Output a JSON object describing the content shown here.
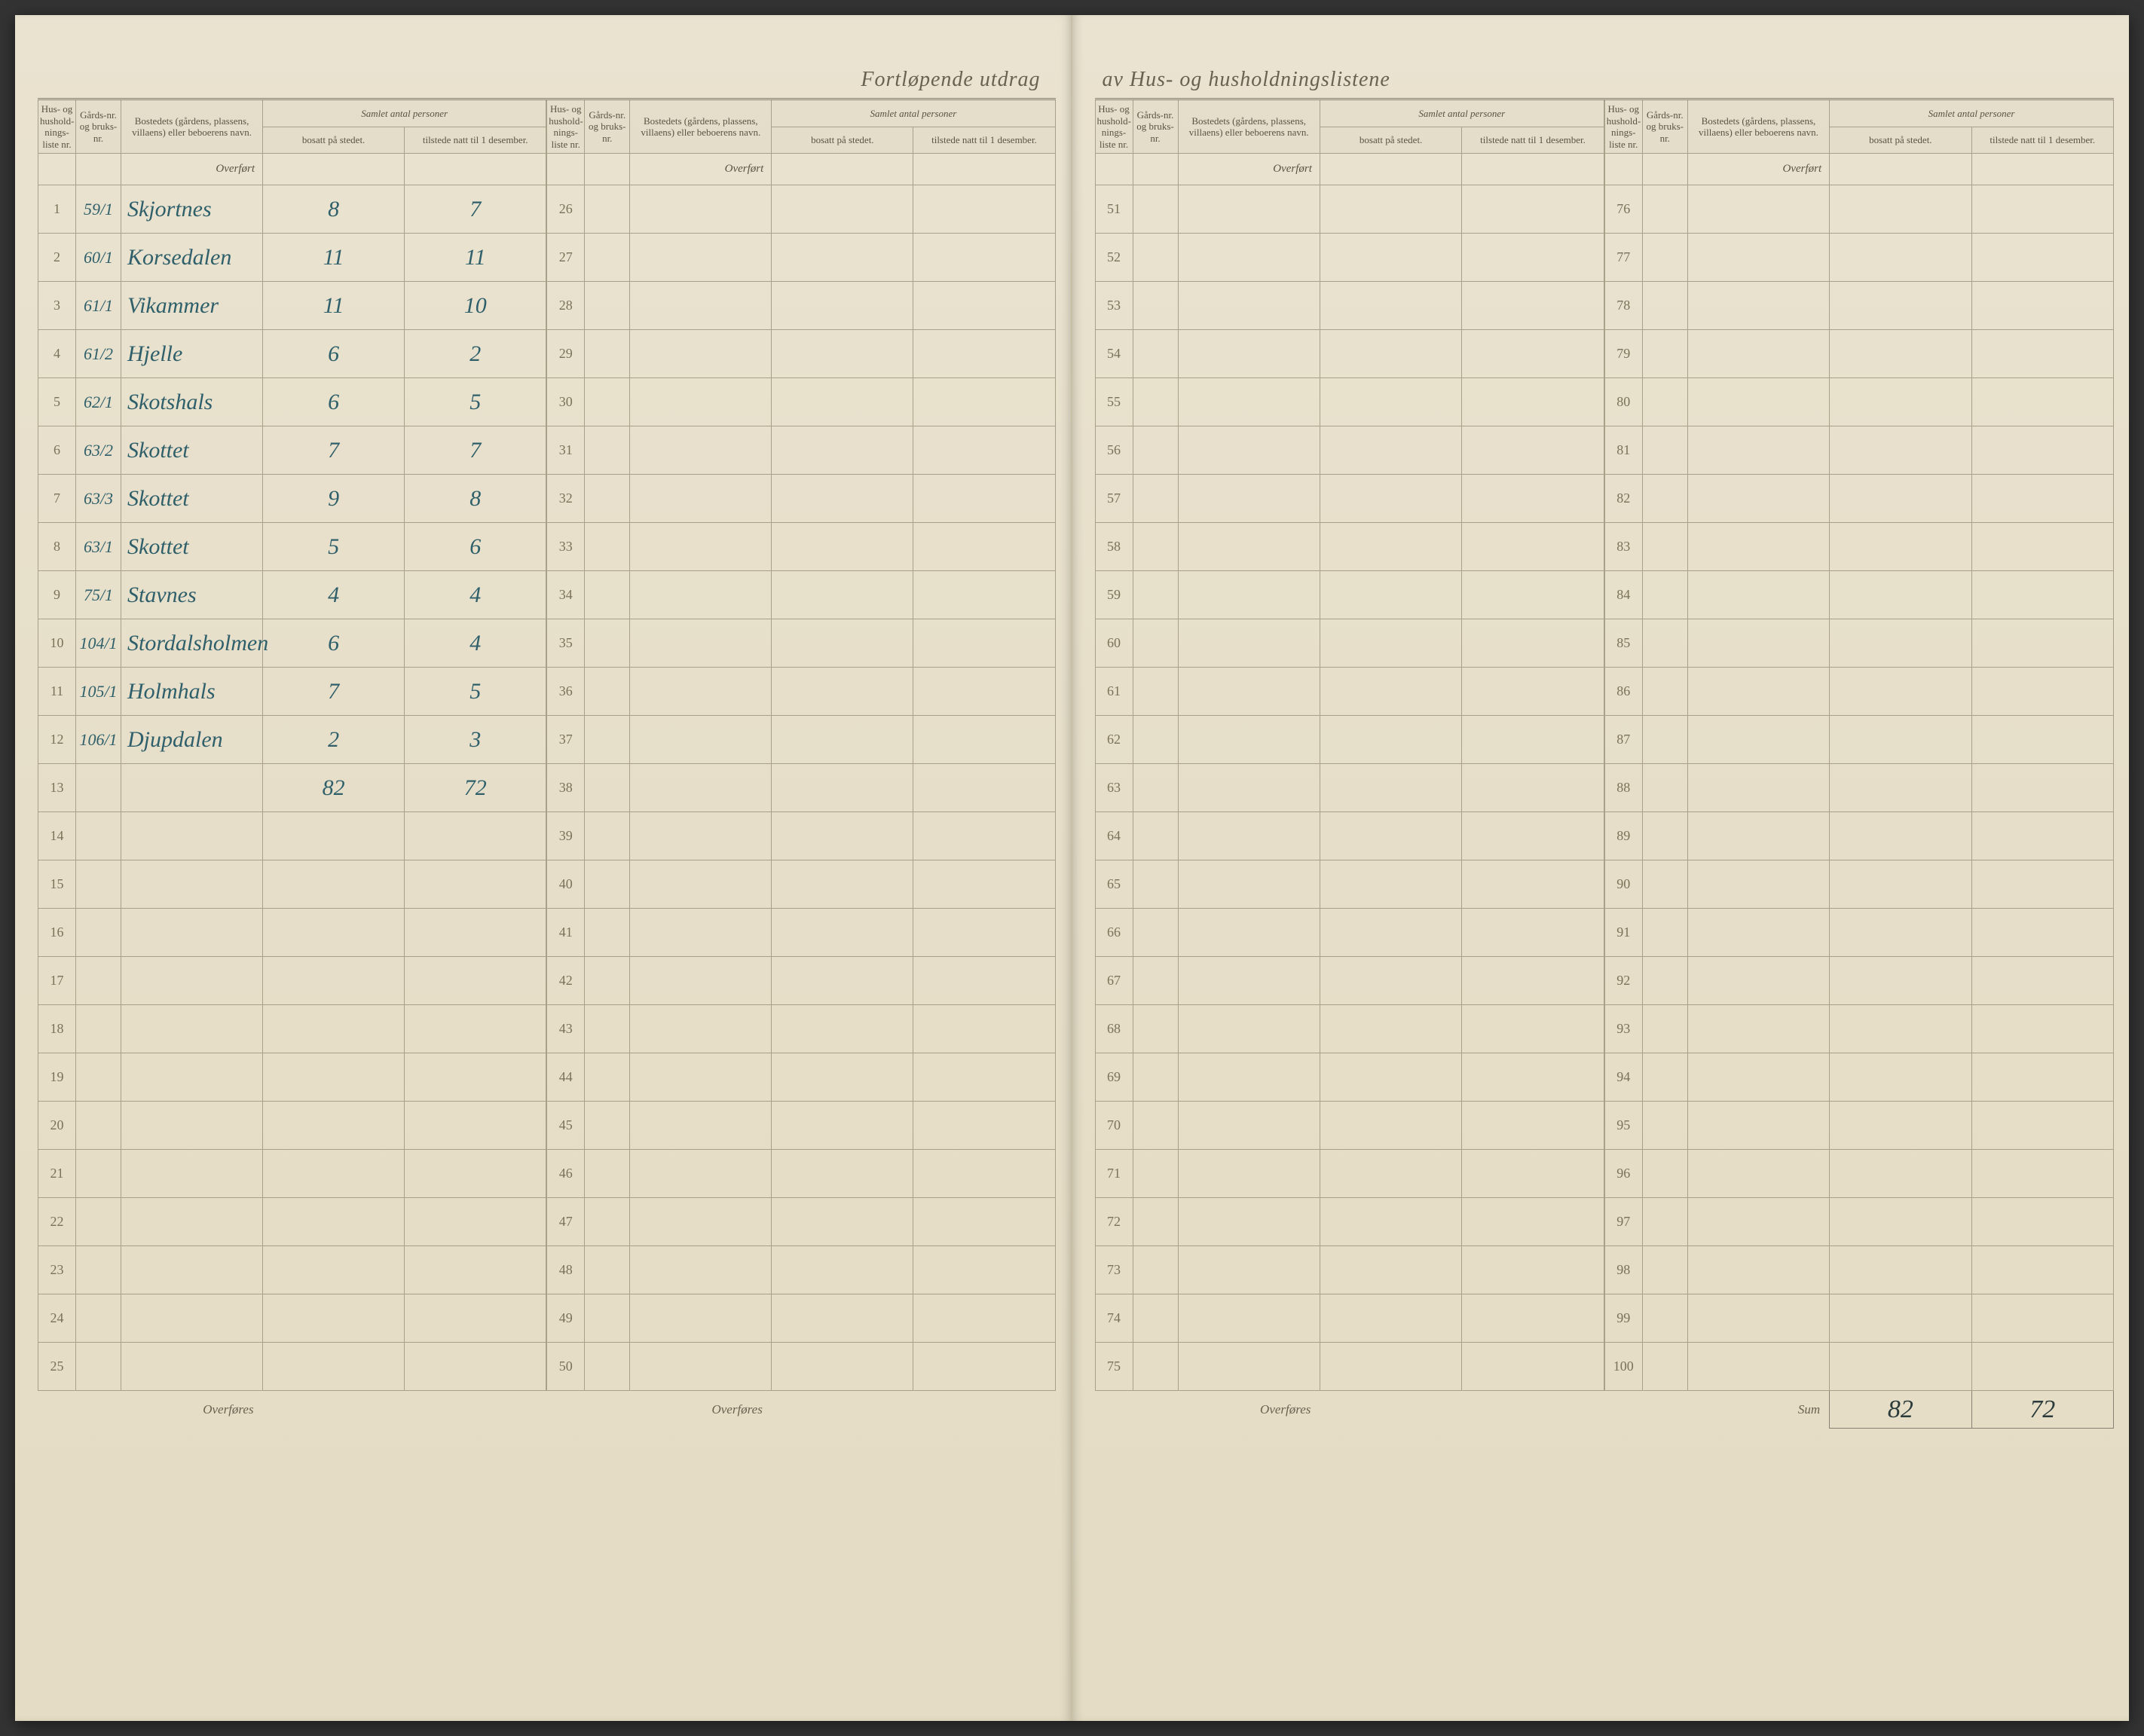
{
  "title_left": "Fortløpende utdrag",
  "title_right": "av Hus- og husholdningslistene",
  "headers": {
    "liste_nr": "Hus- og hushold-nings-liste nr.",
    "gards_nr": "Gårds-nr. og bruks-nr.",
    "bosted": "Bostedets (gårdens, plassens, villaens) eller beboerens navn.",
    "samlet": "Samlet antal personer",
    "bosatt": "bosatt på stedet.",
    "tilstede": "tilstede natt til 1 desember."
  },
  "overfort_label": "Overført",
  "overfores_label": "Overføres",
  "sum_label": "Sum",
  "entries": [
    {
      "nr": "1",
      "gard": "59/1",
      "name": "Skjortnes",
      "bosatt": "8",
      "tilstede": "7"
    },
    {
      "nr": "2",
      "gard": "60/1",
      "name": "Korsedalen",
      "bosatt": "11",
      "tilstede": "11"
    },
    {
      "nr": "3",
      "gard": "61/1",
      "name": "Vikammer",
      "bosatt": "11",
      "tilstede": "10"
    },
    {
      "nr": "4",
      "gard": "61/2",
      "name": "Hjelle",
      "bosatt": "6",
      "tilstede": "2"
    },
    {
      "nr": "5",
      "gard": "62/1",
      "name": "Skotshals",
      "bosatt": "6",
      "tilstede": "5"
    },
    {
      "nr": "6",
      "gard": "63/2",
      "name": "Skottet",
      "bosatt": "7",
      "tilstede": "7"
    },
    {
      "nr": "7",
      "gard": "63/3",
      "name": "Skottet",
      "bosatt": "9",
      "tilstede": "8"
    },
    {
      "nr": "8",
      "gard": "63/1",
      "name": "Skottet",
      "bosatt": "5",
      "tilstede": "6"
    },
    {
      "nr": "9",
      "gard": "75/1",
      "name": "Stavnes",
      "bosatt": "4",
      "tilstede": "4"
    },
    {
      "nr": "10",
      "gard": "104/1",
      "name": "Stordalsholmen",
      "bosatt": "6",
      "tilstede": "4"
    },
    {
      "nr": "11",
      "gard": "105/1",
      "name": "Holmhals",
      "bosatt": "7",
      "tilstede": "5"
    },
    {
      "nr": "12",
      "gard": "106/1",
      "name": "Djupdalen",
      "bosatt": "2",
      "tilstede": "3"
    }
  ],
  "subtotal": {
    "bosatt": "82",
    "tilstede": "72"
  },
  "sum": {
    "bosatt": "82",
    "tilstede": "72"
  },
  "colors": {
    "paper": "#e8e0cc",
    "ink_print": "#6a6250",
    "ink_hand": "#2e5f6a",
    "rule": "#a8a088"
  },
  "typography": {
    "title_fontsize": 28,
    "header_fontsize": 13,
    "rownr_fontsize": 18,
    "hand_fontsize": 30
  },
  "layout": {
    "rows_per_block": 25,
    "blocks": 4,
    "row_start": [
      1,
      26,
      51,
      76
    ]
  }
}
